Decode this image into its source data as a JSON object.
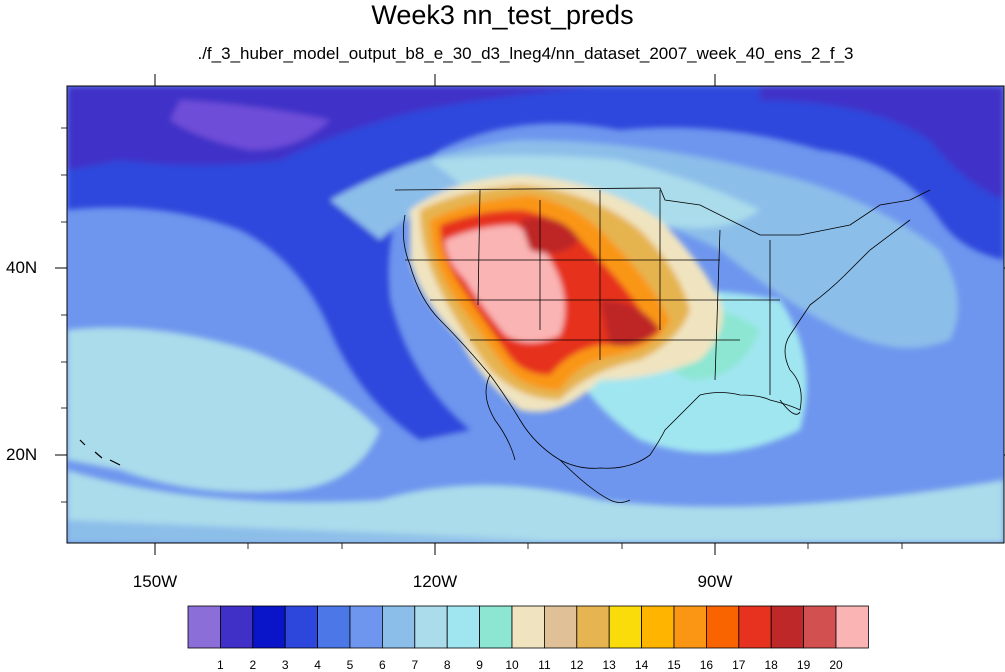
{
  "title": "Week3 nn_test_preds",
  "subtitle": "./f_3_huber_model_output_b8_e_30_d3_lneg4/nn_dataset_2007_week_40_ens_2_f_3",
  "lat_labels": [
    "40N",
    "20N"
  ],
  "lon_labels": [
    "150W",
    "120W",
    "90W"
  ],
  "colorbar": {
    "labels": [
      "1",
      "2",
      "3",
      "4",
      "5",
      "6",
      "7",
      "8",
      "9",
      "10",
      "11",
      "12",
      "13",
      "14",
      "15",
      "16",
      "17",
      "18",
      "19",
      "20"
    ],
    "colors": [
      "#8c6ed8",
      "#4130c8",
      "#0a14c8",
      "#2d46dc",
      "#4b78e6",
      "#6e96ee",
      "#8cbeea",
      "#aadceb",
      "#a0e6f0",
      "#8ce6d2",
      "#f0e4c0",
      "#e0c096",
      "#e6b450",
      "#fadc0a",
      "#ffb400",
      "#fa9614",
      "#fa6400",
      "#e6321e",
      "#be2828",
      "#d25050",
      "#fab4b4"
    ]
  },
  "colors": {
    "ocean_low": "#4b78e6",
    "ocean_mid": "#6e96ee",
    "coast": "#000000"
  }
}
